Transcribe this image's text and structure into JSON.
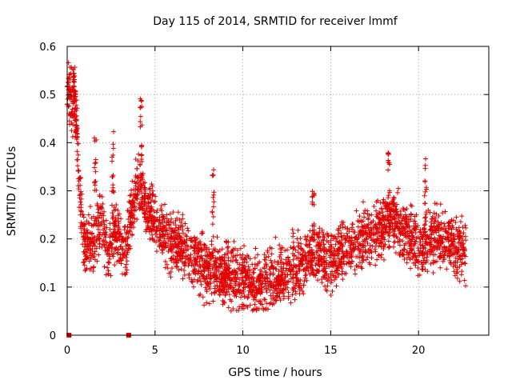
{
  "chart_data": {
    "type": "scatter",
    "title": "Day 115 of 2014, SRMTID for receiver lmmf",
    "xlabel": "GPS time / hours",
    "ylabel": "SRMTID / TECUs",
    "xlim": [
      0,
      24
    ],
    "ylim": [
      0,
      0.6
    ],
    "xticks": [
      0,
      5,
      10,
      15,
      20
    ],
    "yticks": [
      0,
      0.1,
      0.2,
      0.3,
      0.4,
      0.5,
      0.6
    ],
    "xtick_labels": [
      "0",
      "5",
      "10",
      "15",
      "20"
    ],
    "ytick_labels": [
      "0",
      "0.1",
      "0.2",
      "0.3",
      "0.4",
      "0.5",
      "0.6"
    ],
    "grid": true,
    "marker": "plus",
    "color": "#e00000",
    "zero_markers": {
      "marker": "square",
      "x": [
        0.1,
        3.5
      ],
      "y": [
        0,
        0
      ]
    },
    "trend": {
      "x": [
        0,
        0.3,
        0.5,
        0.7,
        1,
        1.5,
        2,
        2.3,
        2.6,
        3,
        3.3,
        3.6,
        4,
        4.2,
        4.5,
        5,
        5.5,
        6,
        7,
        8,
        9,
        10,
        10.5,
        11,
        11.5,
        12,
        13,
        14,
        15,
        16,
        17,
        18,
        18.5,
        19,
        19.5,
        20,
        20.5,
        21,
        22,
        22.7
      ],
      "y": [
        0.5,
        0.49,
        0.46,
        0.3,
        0.18,
        0.19,
        0.24,
        0.16,
        0.21,
        0.2,
        0.17,
        0.25,
        0.3,
        0.31,
        0.27,
        0.23,
        0.21,
        0.19,
        0.17,
        0.14,
        0.13,
        0.12,
        0.11,
        0.1,
        0.11,
        0.12,
        0.14,
        0.17,
        0.16,
        0.18,
        0.2,
        0.23,
        0.24,
        0.22,
        0.2,
        0.18,
        0.19,
        0.21,
        0.19,
        0.17
      ]
    },
    "spikes": [
      {
        "x": 0.4,
        "y": 0.56
      },
      {
        "x": 1.6,
        "y": 0.41
      },
      {
        "x": 2.6,
        "y": 0.43
      },
      {
        "x": 4.2,
        "y": 0.5
      },
      {
        "x": 8.3,
        "y": 0.35
      },
      {
        "x": 14,
        "y": 0.3
      },
      {
        "x": 18.3,
        "y": 0.38
      },
      {
        "x": 20.4,
        "y": 0.38
      }
    ],
    "n_points_per_hour": 140
  }
}
